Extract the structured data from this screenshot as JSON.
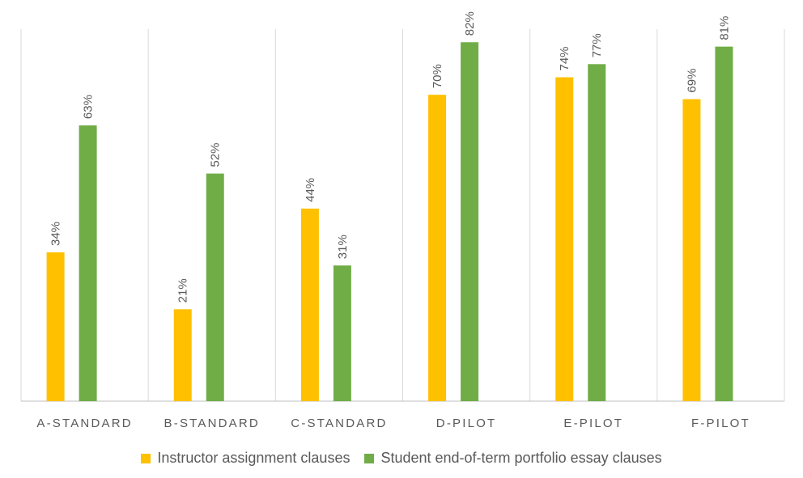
{
  "chart_data": {
    "type": "bar",
    "title": "",
    "xlabel": "",
    "ylabel": "",
    "ylim": [
      0,
      0.85
    ],
    "grid": "vertical category separators",
    "legend_placement": "bottom",
    "categories": [
      "A-STANDARD",
      "B-STANDARD",
      "C-STANDARD",
      "D-PILOT",
      "E-PILOT",
      "F-PILOT"
    ],
    "series": [
      {
        "name": "Instructor assignment clauses",
        "values": [
          0.34,
          0.21,
          0.44,
          0.7,
          0.74,
          0.69
        ],
        "labels": [
          "34%",
          "21%",
          "44%",
          "70%",
          "74%",
          "69%"
        ],
        "color": "#FFC000"
      },
      {
        "name": "Student end-of-term portfolio essay clauses",
        "values": [
          0.63,
          0.52,
          0.31,
          0.82,
          0.77,
          0.81
        ],
        "labels": [
          "63%",
          "52%",
          "31%",
          "82%",
          "77%",
          "81%"
        ],
        "color": "#70AD47"
      }
    ]
  },
  "colors": {
    "axis": "#BFBFBF",
    "grid": "#D9D9D9",
    "text": "#595959"
  }
}
